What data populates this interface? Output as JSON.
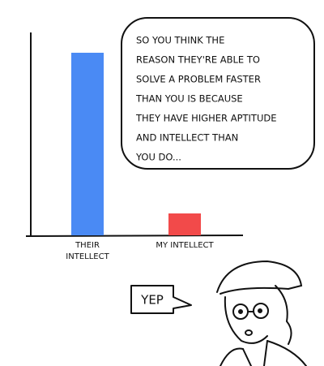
{
  "chart_data": {
    "type": "bar",
    "categories": [
      "THEIR INTELLECT",
      "MY INTELLECT"
    ],
    "values": [
      225,
      27
    ],
    "colors": [
      "#4a8af4",
      "#f24a4a"
    ],
    "ylim": [
      0,
      250
    ],
    "speech_lines": [
      "SO YOU THINK THE",
      "REASON THEY'RE ABLE TO",
      "SOLVE A PROBLEM FASTER",
      "THAN YOU IS BECAUSE",
      "THEY HAVE HIGHER APTITUDE",
      "AND INTELLECT THAN",
      "YOU DO..."
    ],
    "reply": "YEP"
  }
}
